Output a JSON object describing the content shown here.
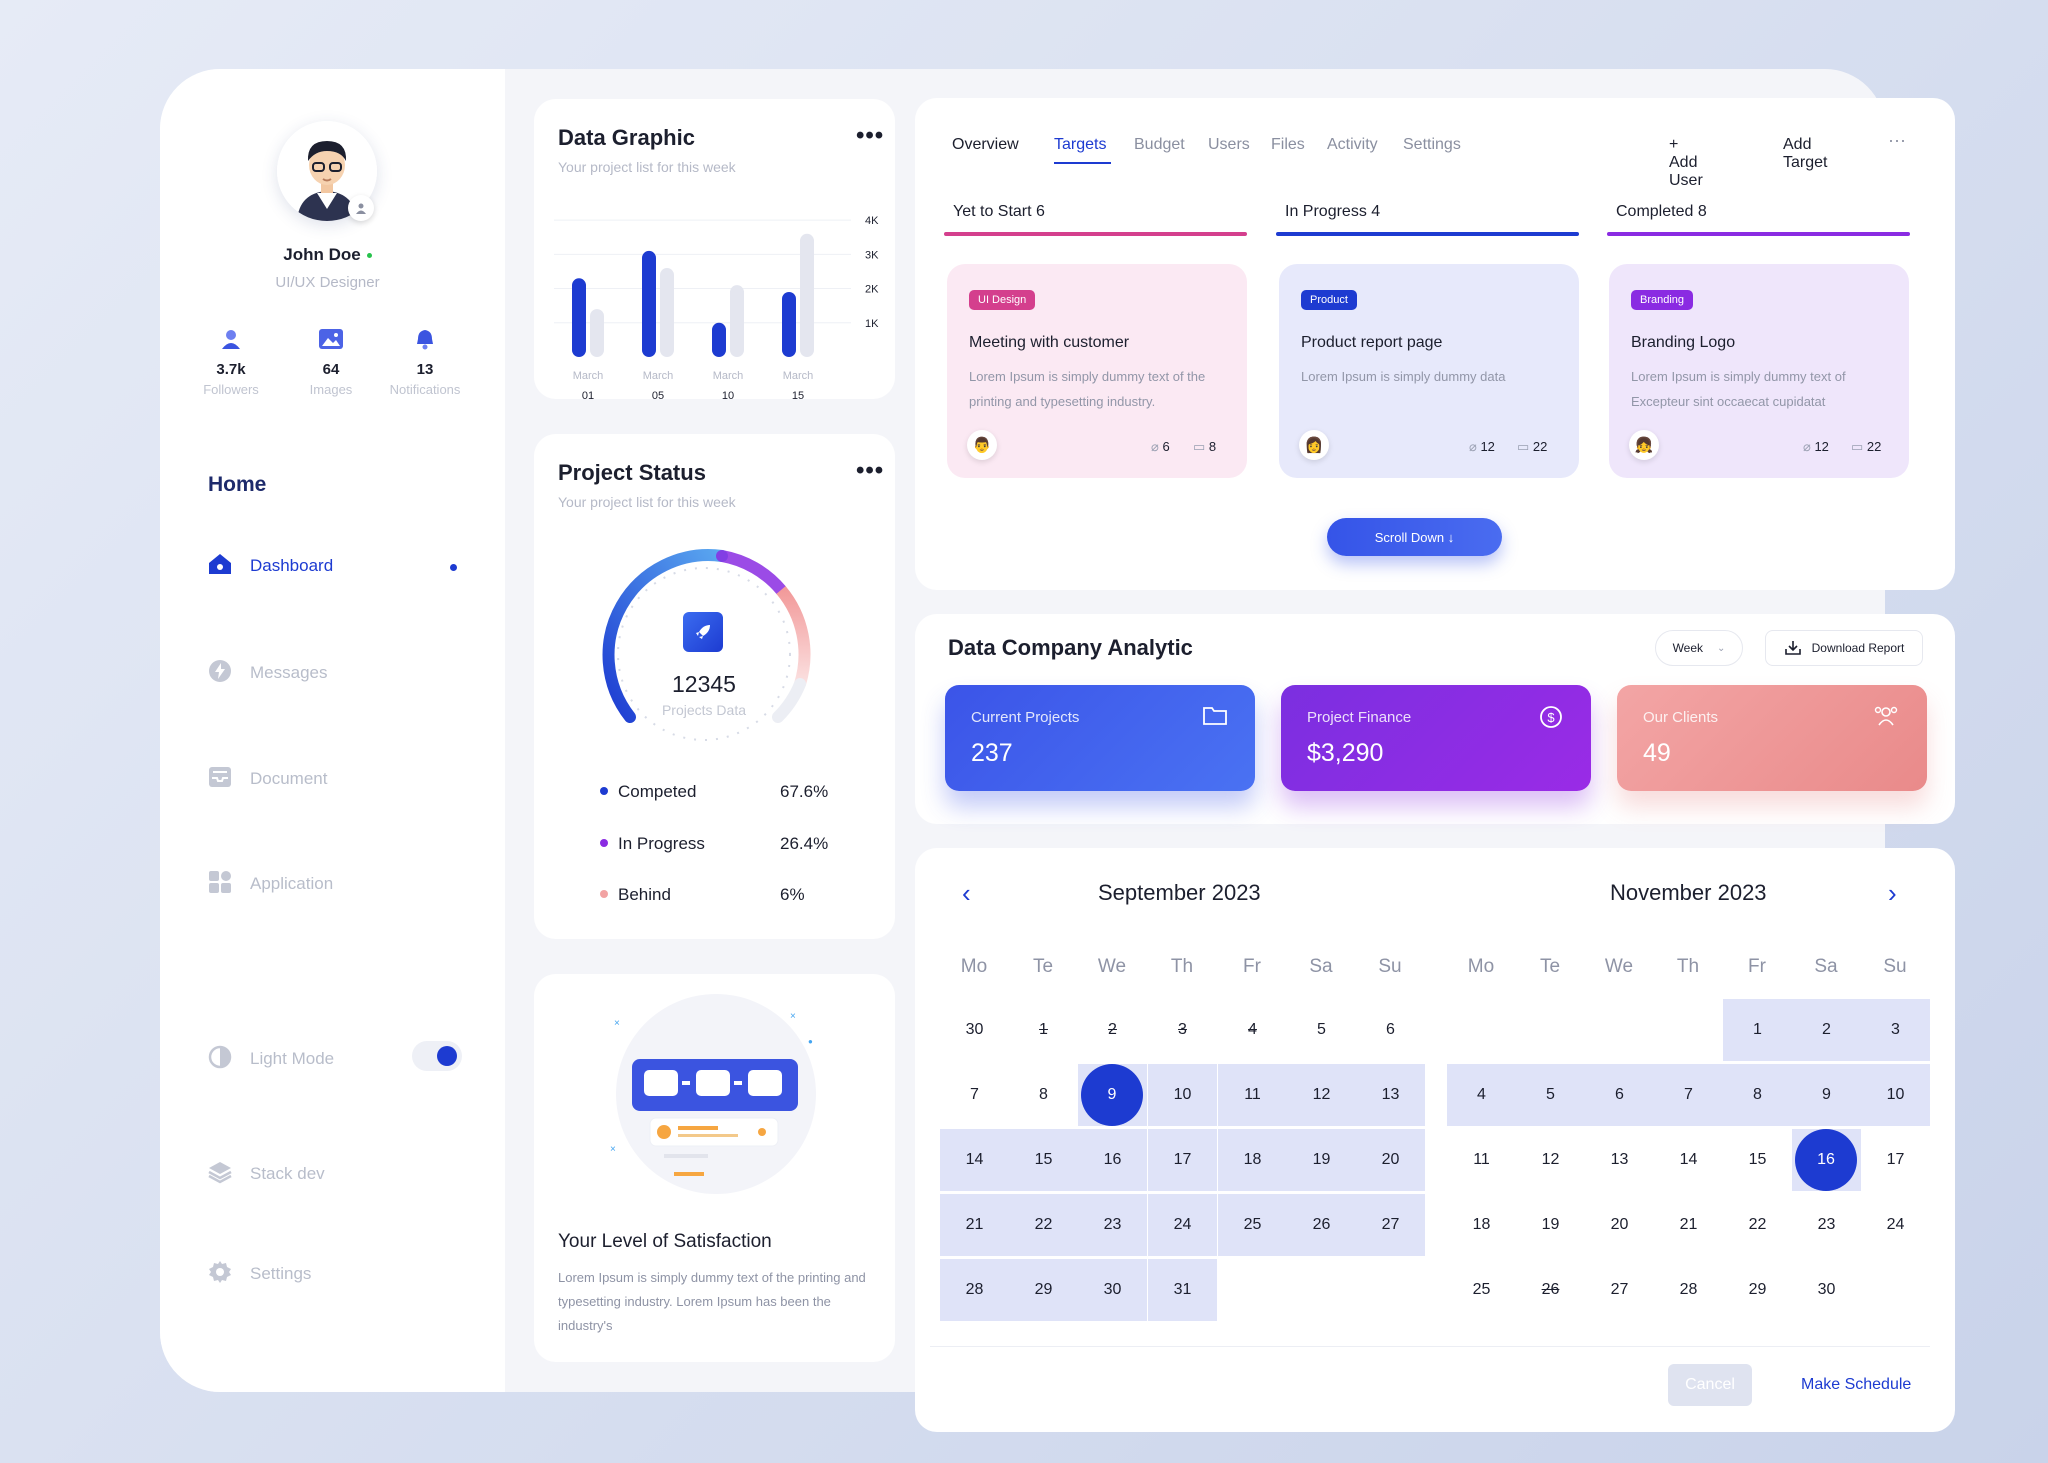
{
  "profile": {
    "name": "John Doe",
    "role": "UI/UX Designer",
    "stats": [
      {
        "value": "3.7k",
        "label": "Followers",
        "icon": "user-icon"
      },
      {
        "value": "64",
        "label": "Images",
        "icon": "image-icon"
      },
      {
        "value": "13",
        "label": "Notifications",
        "icon": "bell-icon"
      }
    ]
  },
  "nav": {
    "home": "Home",
    "items": [
      {
        "label": "Dashboard",
        "icon": "home-icon",
        "active": true
      },
      {
        "label": "Messages",
        "icon": "bolt-icon"
      },
      {
        "label": "Document",
        "icon": "inbox-icon"
      },
      {
        "label": "Application",
        "icon": "grid-icon"
      },
      {
        "label": "Light Mode",
        "icon": "contrast-icon"
      },
      {
        "label": "Stack dev",
        "icon": "layers-icon"
      },
      {
        "label": "Settings",
        "icon": "gear-icon"
      }
    ]
  },
  "data_graphic": {
    "title": "Data Graphic",
    "subtitle": "Your project list for this week",
    "more": "•••"
  },
  "chart_data": {
    "type": "bar",
    "categories": [
      "01",
      "05",
      "10",
      "15"
    ],
    "category_months": [
      "March",
      "March",
      "March",
      "March"
    ],
    "series": [
      {
        "values": [
          2.3,
          3.1,
          1.0,
          1.9
        ],
        "color": "#1d3bd1"
      },
      {
        "values": [
          1.4,
          2.6,
          2.1,
          3.6
        ],
        "color": "#e4e6ef"
      }
    ],
    "yticks": [
      "4K",
      "3K",
      "2K",
      "1K"
    ],
    "ylim": [
      0,
      4
    ],
    "grid": true
  },
  "project_status": {
    "title": "Project Status",
    "subtitle": "Your project list for this week",
    "total": "12345",
    "total_label": "Projects Data",
    "more": "•••",
    "legend": [
      {
        "label": "Competed",
        "value": "67.6%",
        "color": "#1d3bd1"
      },
      {
        "label": "In Progress",
        "value": "26.4%",
        "color": "#8a2be2"
      },
      {
        "label": "Behind",
        "value": "6%",
        "color": "#f2a3a3"
      }
    ]
  },
  "satisfaction": {
    "title": "Your Level of Satisfaction",
    "text": "Lorem Ipsum is simply dummy text of the printing and typesetting industry. Lorem Ipsum has been the industry's"
  },
  "tabs": [
    "Overview",
    "Targets",
    "Budget",
    "Users",
    "Files",
    "Activity",
    "Settings"
  ],
  "actions": {
    "add_user": "+ Add User",
    "add_target": "Add Target",
    "more": "···"
  },
  "columns": [
    {
      "title": "Yet to Start 6",
      "color": "#d43f8d"
    },
    {
      "title": "In Progress 4",
      "color": "#1d3bd1"
    },
    {
      "title": "Completed 8",
      "color": "#8a2be2"
    }
  ],
  "tasks": [
    {
      "tag": "UI Design",
      "tag_color": "#d43f8d",
      "bg": "#fbe9f3",
      "title": "Meeting with customer",
      "desc": "Lorem Ipsum is simply dummy text of the printing and typesetting industry.",
      "attachments": "6",
      "comments": "8",
      "avatar": "👨"
    },
    {
      "tag": "Product",
      "tag_color": "#1d3bd1",
      "bg": "#e7e9fb",
      "title": "Product report page",
      "desc": "Lorem Ipsum is simply dummy data",
      "attachments": "12",
      "comments": "22",
      "avatar": "👩"
    },
    {
      "tag": "Branding",
      "tag_color": "#8a2be2",
      "bg": "#efe6fb",
      "title": "Branding Logo",
      "desc": "Lorem Ipsum is simply dummy text of Excepteur sint occaecat cupidatat",
      "attachments": "12",
      "comments": "22",
      "avatar": "👧"
    }
  ],
  "scroll_down": "Scroll Down ↓",
  "analytic": {
    "title": "Data Company Analytic",
    "period": "Week",
    "download": "Download Report",
    "kpis": [
      {
        "label": "Current Projects",
        "value": "237",
        "icon": "folder-icon"
      },
      {
        "label": "Project Finance",
        "value": "$3,290",
        "icon": "dollar-icon"
      },
      {
        "label": "Our Clients",
        "value": "49",
        "icon": "users-icon"
      }
    ]
  },
  "calendar": {
    "left_month": "September 2023",
    "right_month": "November 2023",
    "weekdays": [
      "Mo",
      "Te",
      "We",
      "Th",
      "Fr",
      "Sa",
      "Su"
    ],
    "sep_selected": "9",
    "nov_selected": "16",
    "cancel": "Cancel",
    "make": "Make Schedule"
  }
}
